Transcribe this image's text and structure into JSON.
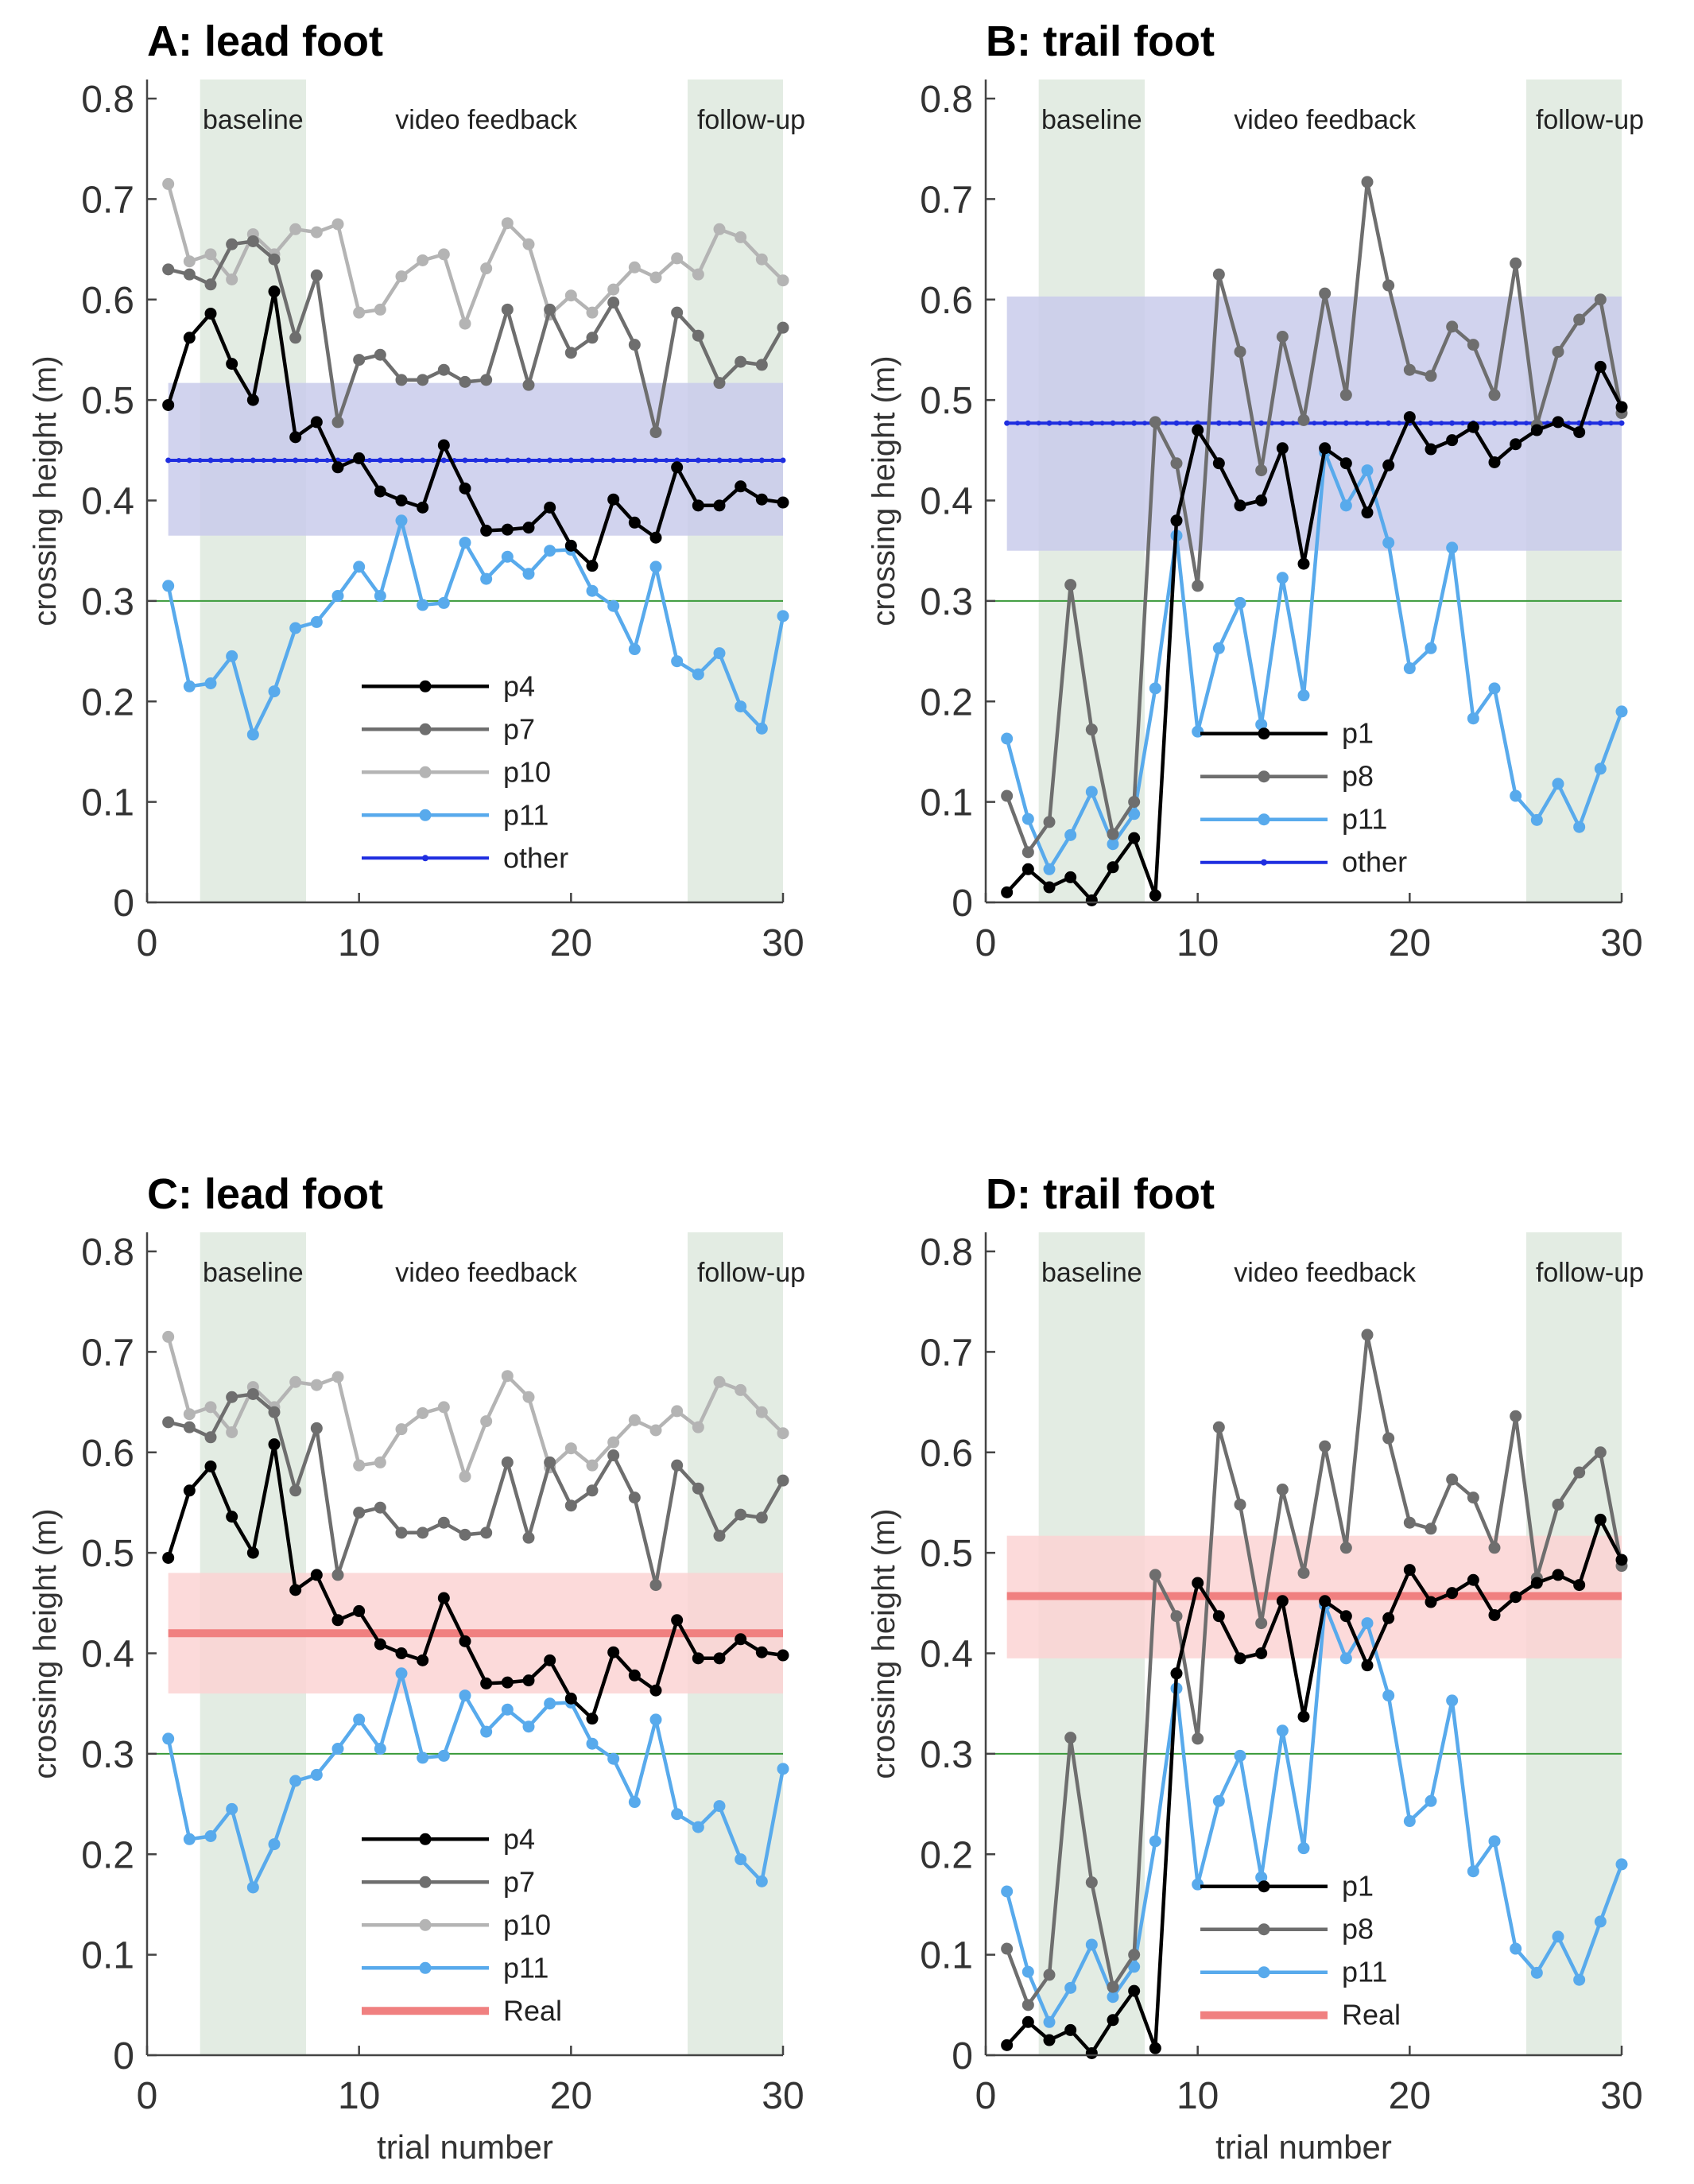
{
  "figure": {
    "type": "line",
    "xlabel": "trial number",
    "ylabel": "crossing height (m)",
    "xlim": [
      0,
      30
    ],
    "ylim": [
      0,
      0.8
    ],
    "xticks": [
      "0",
      "10",
      "20",
      "30"
    ],
    "yticks": [
      "0",
      "0.1",
      "0.2",
      "0.3",
      "0.4",
      "0.5",
      "0.6",
      "0.7",
      "0.8"
    ],
    "phase_labels": [
      "baseline",
      "video feedback",
      "follow-up"
    ],
    "threshold": 0.3,
    "colors": {
      "p4": "#000000",
      "p7": "#6e6e6e",
      "p10": "#b4b4b4",
      "p11": "#58aaec",
      "p1": "#000000",
      "p8": "#6e6e6e",
      "other": "#1f2ee0",
      "other_band": "#c9cbeb",
      "real": "#f08080",
      "real_band": "#fcd3d3",
      "phase_band": "#e3ece3",
      "threshold": "#3a9a3a"
    }
  },
  "chart_data": [
    {
      "type": "line",
      "panel": "A",
      "title": "A: lead foot",
      "xlabel": "",
      "ylabel": "crossing height (m)",
      "ylim": [
        0,
        0.8
      ],
      "reference": {
        "name": "other",
        "mean": 0.44,
        "lower": 0.365,
        "upper": 0.517,
        "style": "dotted-line"
      },
      "series": [
        {
          "name": "p4",
          "x": [
            1,
            2,
            3,
            4,
            5,
            6,
            7,
            8,
            9,
            10,
            11,
            12,
            13,
            14,
            15,
            16,
            17,
            18,
            19,
            20,
            21,
            22,
            23,
            24,
            25,
            26,
            27,
            28,
            29,
            30
          ],
          "values": [
            0.495,
            0.562,
            0.586,
            0.536,
            0.5,
            0.608,
            0.463,
            0.478,
            0.433,
            0.442,
            0.409,
            0.4,
            0.393,
            0.455,
            0.412,
            0.37,
            0.371,
            0.373,
            0.393,
            0.355,
            0.335,
            0.401,
            0.378,
            0.363,
            0.433,
            0.395,
            0.395,
            0.414,
            0.401,
            0.398
          ]
        },
        {
          "name": "p7",
          "x": [
            1,
            2,
            3,
            4,
            5,
            6,
            7,
            8,
            9,
            10,
            11,
            12,
            13,
            14,
            15,
            16,
            17,
            18,
            19,
            20,
            21,
            22,
            23,
            24,
            25,
            26,
            27,
            28,
            29,
            30
          ],
          "values": [
            0.63,
            0.625,
            0.615,
            0.655,
            0.658,
            0.64,
            0.562,
            0.624,
            0.478,
            0.54,
            0.545,
            0.52,
            0.52,
            0.53,
            0.518,
            0.52,
            0.59,
            0.515,
            0.59,
            0.547,
            0.562,
            0.597,
            0.555,
            0.468,
            0.587,
            0.564,
            0.517,
            0.538,
            0.535,
            0.572
          ]
        },
        {
          "name": "p10",
          "x": [
            1,
            2,
            3,
            4,
            5,
            6,
            7,
            8,
            9,
            10,
            11,
            12,
            13,
            14,
            15,
            16,
            17,
            18,
            19,
            20,
            21,
            22,
            23,
            24,
            25,
            26,
            27,
            28,
            29,
            30
          ],
          "values": [
            0.715,
            0.638,
            0.645,
            0.62,
            0.665,
            0.645,
            0.67,
            0.667,
            0.675,
            0.587,
            0.59,
            0.623,
            0.639,
            0.645,
            0.576,
            0.631,
            0.676,
            0.655,
            0.585,
            0.604,
            0.587,
            0.61,
            0.632,
            0.622,
            0.641,
            0.625,
            0.67,
            0.662,
            0.64,
            0.619
          ]
        },
        {
          "name": "p11",
          "x": [
            1,
            2,
            3,
            4,
            5,
            6,
            7,
            8,
            9,
            10,
            11,
            12,
            13,
            14,
            15,
            16,
            17,
            18,
            19,
            20,
            21,
            22,
            23,
            24,
            25,
            26,
            27,
            28,
            29,
            30
          ],
          "values": [
            0.315,
            0.215,
            0.218,
            0.245,
            0.167,
            0.21,
            0.273,
            0.279,
            0.305,
            0.334,
            0.305,
            0.38,
            0.296,
            0.298,
            0.358,
            0.322,
            0.344,
            0.327,
            0.35,
            0.351,
            0.31,
            0.295,
            0.252,
            0.334,
            0.24,
            0.227,
            0.248,
            0.195,
            0.173,
            0.285
          ]
        }
      ],
      "legend": [
        "p4",
        "p7",
        "p10",
        "p11",
        "other"
      ]
    },
    {
      "type": "line",
      "panel": "B",
      "title": "B: trail foot",
      "xlabel": "",
      "ylabel": "crossing height (m)",
      "ylim": [
        0,
        0.8
      ],
      "reference": {
        "name": "other",
        "mean": 0.477,
        "lower": 0.35,
        "upper": 0.603,
        "style": "dotted-line"
      },
      "series": [
        {
          "name": "p1",
          "x": [
            1,
            2,
            3,
            4,
            5,
            6,
            7,
            8,
            9,
            10,
            11,
            12,
            13,
            14,
            15,
            16,
            17,
            18,
            19,
            20,
            21,
            22,
            23,
            24,
            25,
            26,
            27,
            28,
            29,
            30
          ],
          "values": [
            0.01,
            0.033,
            0.015,
            0.025,
            0.002,
            0.035,
            0.064,
            0.007,
            0.38,
            0.47,
            0.437,
            0.395,
            0.4,
            0.452,
            0.337,
            0.452,
            0.437,
            0.388,
            0.435,
            0.483,
            0.451,
            0.46,
            0.473,
            0.438,
            0.456,
            0.47,
            0.478,
            0.468,
            0.533,
            0.493
          ]
        },
        {
          "name": "p8",
          "x": [
            1,
            2,
            3,
            4,
            5,
            6,
            7,
            8,
            9,
            10,
            11,
            12,
            13,
            14,
            15,
            16,
            17,
            18,
            19,
            20,
            21,
            22,
            23,
            24,
            25,
            26,
            27,
            28,
            29,
            30
          ],
          "values": [
            0.106,
            0.05,
            0.08,
            0.316,
            0.172,
            0.068,
            0.1,
            0.478,
            0.437,
            0.315,
            0.625,
            0.548,
            0.43,
            0.563,
            0.48,
            0.606,
            0.505,
            0.717,
            0.614,
            0.53,
            0.524,
            0.573,
            0.555,
            0.505,
            0.636,
            0.475,
            0.548,
            0.58,
            0.6,
            0.487
          ]
        },
        {
          "name": "p11",
          "x": [
            1,
            2,
            3,
            4,
            5,
            6,
            7,
            8,
            9,
            10,
            11,
            12,
            13,
            14,
            15,
            16,
            17,
            18,
            19,
            20,
            21,
            22,
            23,
            24,
            25,
            26,
            27,
            28,
            29,
            30
          ],
          "values": [
            0.163,
            0.083,
            0.033,
            0.067,
            0.11,
            0.058,
            0.088,
            0.213,
            0.365,
            0.17,
            0.253,
            0.298,
            0.177,
            0.323,
            0.206,
            0.448,
            0.395,
            0.43,
            0.358,
            0.233,
            0.253,
            0.353,
            0.183,
            0.213,
            0.106,
            0.082,
            0.118,
            0.075,
            0.133,
            0.19
          ]
        }
      ],
      "legend": [
        "p1",
        "p8",
        "p11",
        "other"
      ]
    },
    {
      "type": "line",
      "panel": "C",
      "title": "C: lead foot",
      "xlabel": "trial number",
      "ylabel": "crossing height (m)",
      "ylim": [
        0,
        0.8
      ],
      "reference": {
        "name": "Real",
        "mean": 0.42,
        "lower": 0.36,
        "upper": 0.48,
        "style": "thick-line"
      },
      "series": [
        {
          "name": "p4",
          "x": [
            1,
            2,
            3,
            4,
            5,
            6,
            7,
            8,
            9,
            10,
            11,
            12,
            13,
            14,
            15,
            16,
            17,
            18,
            19,
            20,
            21,
            22,
            23,
            24,
            25,
            26,
            27,
            28,
            29,
            30
          ],
          "values": [
            0.495,
            0.562,
            0.586,
            0.536,
            0.5,
            0.608,
            0.463,
            0.478,
            0.433,
            0.442,
            0.409,
            0.4,
            0.393,
            0.455,
            0.412,
            0.37,
            0.371,
            0.373,
            0.393,
            0.355,
            0.335,
            0.401,
            0.378,
            0.363,
            0.433,
            0.395,
            0.395,
            0.414,
            0.401,
            0.398
          ]
        },
        {
          "name": "p7",
          "x": [
            1,
            2,
            3,
            4,
            5,
            6,
            7,
            8,
            9,
            10,
            11,
            12,
            13,
            14,
            15,
            16,
            17,
            18,
            19,
            20,
            21,
            22,
            23,
            24,
            25,
            26,
            27,
            28,
            29,
            30
          ],
          "values": [
            0.63,
            0.625,
            0.615,
            0.655,
            0.658,
            0.64,
            0.562,
            0.624,
            0.478,
            0.54,
            0.545,
            0.52,
            0.52,
            0.53,
            0.518,
            0.52,
            0.59,
            0.515,
            0.59,
            0.547,
            0.562,
            0.597,
            0.555,
            0.468,
            0.587,
            0.564,
            0.517,
            0.538,
            0.535,
            0.572
          ]
        },
        {
          "name": "p10",
          "x": [
            1,
            2,
            3,
            4,
            5,
            6,
            7,
            8,
            9,
            10,
            11,
            12,
            13,
            14,
            15,
            16,
            17,
            18,
            19,
            20,
            21,
            22,
            23,
            24,
            25,
            26,
            27,
            28,
            29,
            30
          ],
          "values": [
            0.715,
            0.638,
            0.645,
            0.62,
            0.665,
            0.645,
            0.67,
            0.667,
            0.675,
            0.587,
            0.59,
            0.623,
            0.639,
            0.645,
            0.576,
            0.631,
            0.676,
            0.655,
            0.585,
            0.604,
            0.587,
            0.61,
            0.632,
            0.622,
            0.641,
            0.625,
            0.67,
            0.662,
            0.64,
            0.619
          ]
        },
        {
          "name": "p11",
          "x": [
            1,
            2,
            3,
            4,
            5,
            6,
            7,
            8,
            9,
            10,
            11,
            12,
            13,
            14,
            15,
            16,
            17,
            18,
            19,
            20,
            21,
            22,
            23,
            24,
            25,
            26,
            27,
            28,
            29,
            30
          ],
          "values": [
            0.315,
            0.215,
            0.218,
            0.245,
            0.167,
            0.21,
            0.273,
            0.279,
            0.305,
            0.334,
            0.305,
            0.38,
            0.296,
            0.298,
            0.358,
            0.322,
            0.344,
            0.327,
            0.35,
            0.351,
            0.31,
            0.295,
            0.252,
            0.334,
            0.24,
            0.227,
            0.248,
            0.195,
            0.173,
            0.285
          ]
        }
      ],
      "legend": [
        "p4",
        "p7",
        "p10",
        "p11",
        "Real"
      ]
    },
    {
      "type": "line",
      "panel": "D",
      "title": "D: trail foot",
      "xlabel": "trial number",
      "ylabel": "crossing height (m)",
      "ylim": [
        0,
        0.8
      ],
      "reference": {
        "name": "Real",
        "mean": 0.457,
        "lower": 0.395,
        "upper": 0.517,
        "style": "thick-line"
      },
      "series": [
        {
          "name": "p1",
          "x": [
            1,
            2,
            3,
            4,
            5,
            6,
            7,
            8,
            9,
            10,
            11,
            12,
            13,
            14,
            15,
            16,
            17,
            18,
            19,
            20,
            21,
            22,
            23,
            24,
            25,
            26,
            27,
            28,
            29,
            30
          ],
          "values": [
            0.01,
            0.033,
            0.015,
            0.025,
            0.002,
            0.035,
            0.064,
            0.007,
            0.38,
            0.47,
            0.437,
            0.395,
            0.4,
            0.452,
            0.337,
            0.452,
            0.437,
            0.388,
            0.435,
            0.483,
            0.451,
            0.46,
            0.473,
            0.438,
            0.456,
            0.47,
            0.478,
            0.468,
            0.533,
            0.493
          ]
        },
        {
          "name": "p8",
          "x": [
            1,
            2,
            3,
            4,
            5,
            6,
            7,
            8,
            9,
            10,
            11,
            12,
            13,
            14,
            15,
            16,
            17,
            18,
            19,
            20,
            21,
            22,
            23,
            24,
            25,
            26,
            27,
            28,
            29,
            30
          ],
          "values": [
            0.106,
            0.05,
            0.08,
            0.316,
            0.172,
            0.068,
            0.1,
            0.478,
            0.437,
            0.315,
            0.625,
            0.548,
            0.43,
            0.563,
            0.48,
            0.606,
            0.505,
            0.717,
            0.614,
            0.53,
            0.524,
            0.573,
            0.555,
            0.505,
            0.636,
            0.475,
            0.548,
            0.58,
            0.6,
            0.487
          ]
        },
        {
          "name": "p11",
          "x": [
            1,
            2,
            3,
            4,
            5,
            6,
            7,
            8,
            9,
            10,
            11,
            12,
            13,
            14,
            15,
            16,
            17,
            18,
            19,
            20,
            21,
            22,
            23,
            24,
            25,
            26,
            27,
            28,
            29,
            30
          ],
          "values": [
            0.163,
            0.083,
            0.033,
            0.067,
            0.11,
            0.058,
            0.088,
            0.213,
            0.365,
            0.17,
            0.253,
            0.298,
            0.177,
            0.323,
            0.206,
            0.448,
            0.395,
            0.43,
            0.358,
            0.233,
            0.253,
            0.353,
            0.183,
            0.213,
            0.106,
            0.082,
            0.118,
            0.075,
            0.133,
            0.19
          ]
        }
      ],
      "legend": [
        "p1",
        "p8",
        "p11",
        "Real"
      ]
    }
  ]
}
